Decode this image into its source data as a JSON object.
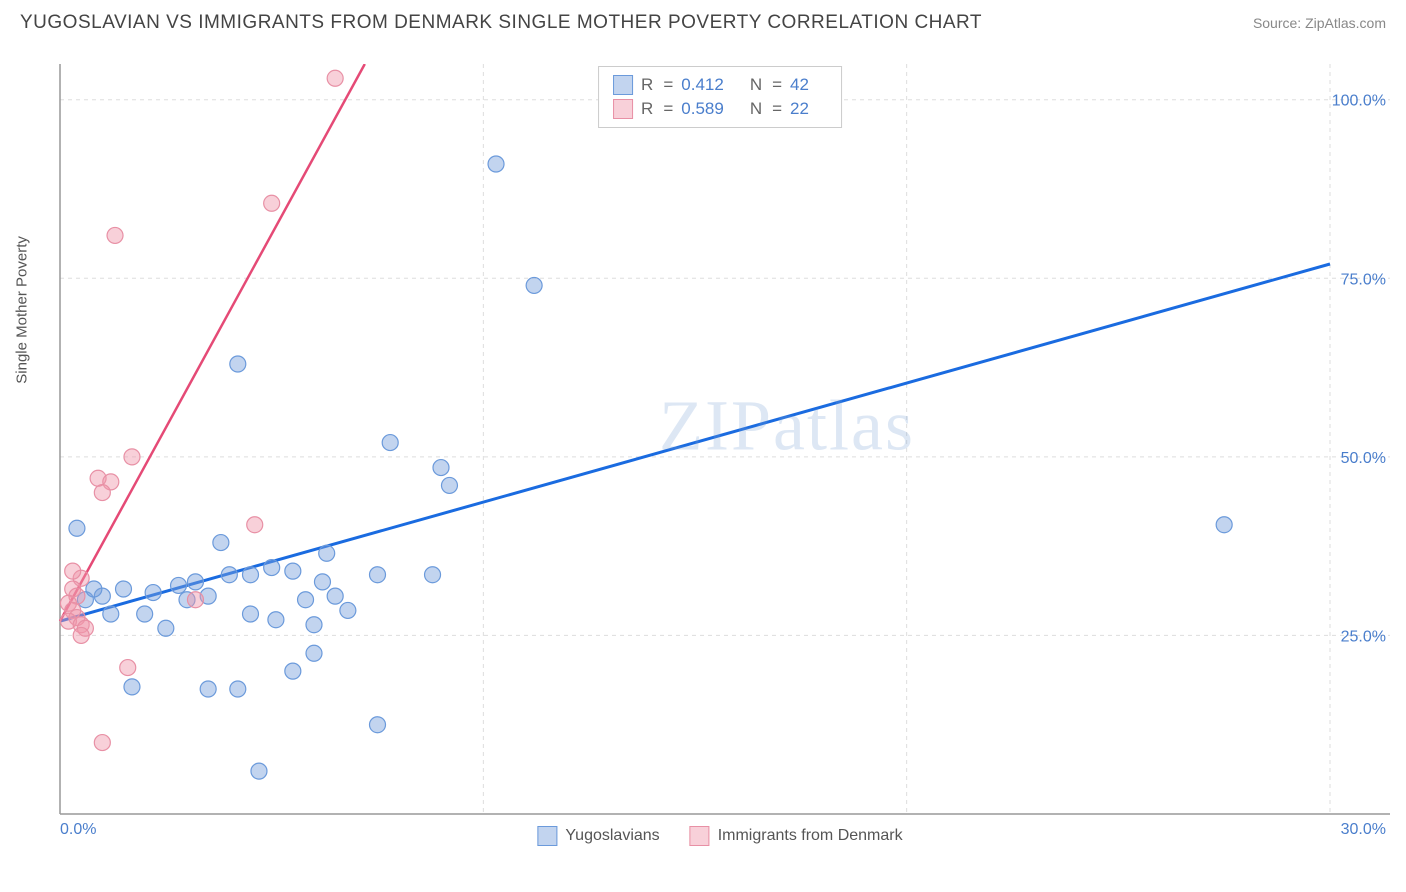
{
  "header": {
    "title": "YUGOSLAVIAN VS IMMIGRANTS FROM DENMARK SINGLE MOTHER POVERTY CORRELATION CHART",
    "source": "Source: ZipAtlas.com"
  },
  "watermark": {
    "zip": "ZIP",
    "atlas": "atlas"
  },
  "chart": {
    "type": "scatter",
    "y_axis_label": "Single Mother Poverty",
    "xlim": [
      0,
      30
    ],
    "ylim": [
      0,
      105
    ],
    "x_ticks": [
      0,
      10,
      20,
      30
    ],
    "x_tick_labels": [
      "0.0%",
      "",
      "",
      "30.0%"
    ],
    "y_ticks": [
      25,
      50,
      75,
      100
    ],
    "y_tick_labels": [
      "25.0%",
      "50.0%",
      "75.0%",
      "100.0%"
    ],
    "tick_color": "#4a7ecc",
    "tick_fontsize": 16,
    "grid_color": "#dddddd",
    "axis_color": "#999999",
    "background_color": "#ffffff",
    "marker_radius": 8,
    "marker_opacity": 0.55,
    "series": [
      {
        "name": "Yugoslavians",
        "color_fill": "rgba(120,160,220,0.45)",
        "color_stroke": "#6b9adb",
        "r": "0.412",
        "n": "42",
        "trend": {
          "x1": 0,
          "y1": 27,
          "x2": 30,
          "y2": 77,
          "color": "#1a6be0",
          "width": 3
        },
        "points": [
          [
            10.3,
            91
          ],
          [
            11.2,
            74
          ],
          [
            4.2,
            63
          ],
          [
            7.8,
            52
          ],
          [
            9.0,
            48.5
          ],
          [
            9.2,
            46
          ],
          [
            27.5,
            40.5
          ],
          [
            0.4,
            40
          ],
          [
            6.3,
            36.5
          ],
          [
            5.5,
            34
          ],
          [
            7.5,
            33.5
          ],
          [
            8.8,
            33.5
          ],
          [
            4.0,
            33.5
          ],
          [
            4.5,
            33.5
          ],
          [
            3.8,
            38
          ],
          [
            1.5,
            31.5
          ],
          [
            1.0,
            30.5
          ],
          [
            2.2,
            31
          ],
          [
            2.8,
            32
          ],
          [
            3.2,
            32.5
          ],
          [
            5.0,
            34.5
          ],
          [
            6.5,
            30.5
          ],
          [
            6.0,
            26.5
          ],
          [
            2.0,
            28
          ],
          [
            4.5,
            28
          ],
          [
            6.8,
            28.5
          ],
          [
            5.1,
            27.2
          ],
          [
            3.5,
            17.5
          ],
          [
            4.2,
            17.5
          ],
          [
            1.7,
            17.8
          ],
          [
            7.5,
            12.5
          ],
          [
            4.7,
            6
          ],
          [
            5.5,
            20
          ],
          [
            6.0,
            22.5
          ],
          [
            2.5,
            26
          ],
          [
            3.0,
            30
          ],
          [
            3.5,
            30.5
          ],
          [
            0.6,
            30
          ],
          [
            0.8,
            31.5
          ],
          [
            1.2,
            28
          ],
          [
            6.2,
            32.5
          ],
          [
            5.8,
            30
          ]
        ]
      },
      {
        "name": "Immigrants from Denmark",
        "color_fill": "rgba(240,150,170,0.45)",
        "color_stroke": "#e890a5",
        "r": "0.589",
        "n": "22",
        "trend": {
          "x1": 0,
          "y1": 27,
          "x2": 7.2,
          "y2": 105,
          "color": "#e54a76",
          "width": 2.5
        },
        "points": [
          [
            6.5,
            103
          ],
          [
            5.0,
            85.5
          ],
          [
            1.3,
            81
          ],
          [
            1.7,
            50
          ],
          [
            0.9,
            47
          ],
          [
            1.2,
            46.5
          ],
          [
            1.0,
            45
          ],
          [
            4.6,
            40.5
          ],
          [
            0.5,
            33
          ],
          [
            0.3,
            31.5
          ],
          [
            0.4,
            30.5
          ],
          [
            0.2,
            29.5
          ],
          [
            0.3,
            28.5
          ],
          [
            0.4,
            27.5
          ],
          [
            0.2,
            27
          ],
          [
            0.3,
            34
          ],
          [
            3.2,
            30
          ],
          [
            1.6,
            20.5
          ],
          [
            0.5,
            26.5
          ],
          [
            1.0,
            10
          ],
          [
            0.6,
            26
          ],
          [
            0.5,
            25
          ]
        ]
      }
    ],
    "legend_top": {
      "r_label": "R",
      "n_label": "N",
      "equals": "="
    },
    "legend_bottom": {
      "items": [
        "Yugoslavians",
        "Immigrants from Denmark"
      ]
    }
  }
}
